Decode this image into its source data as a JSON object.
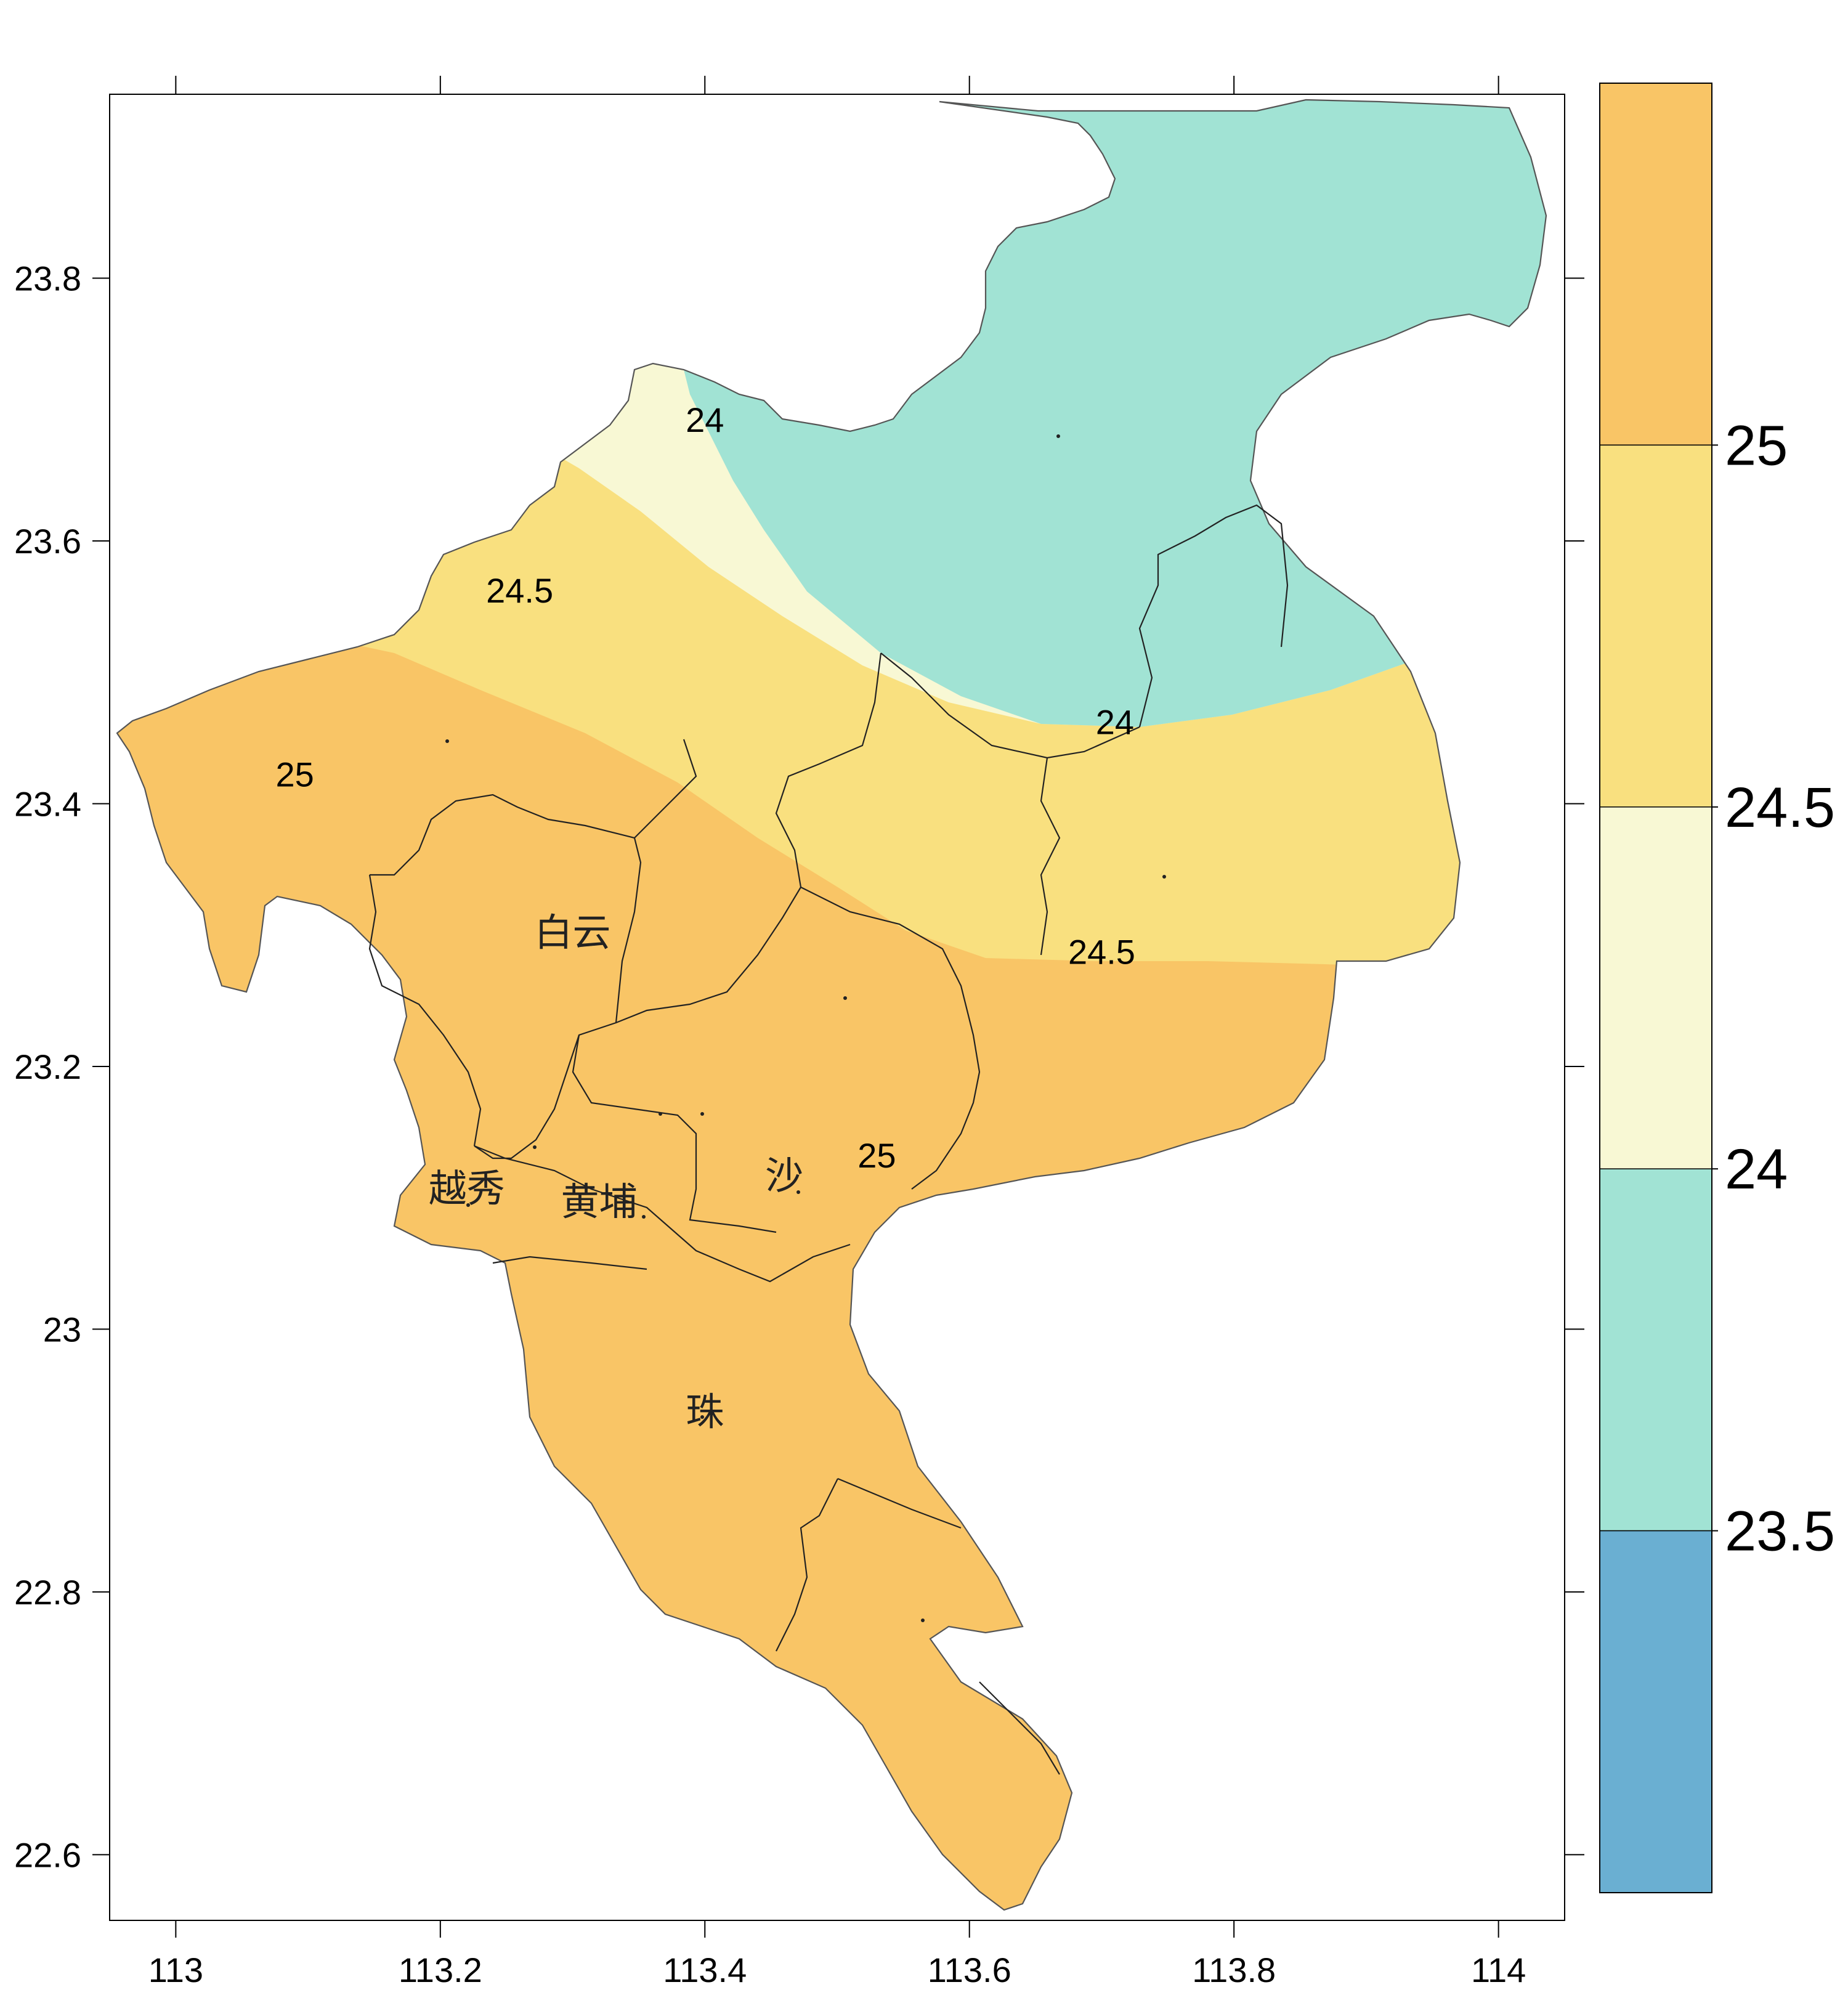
{
  "chart_data": {
    "type": "contour-map",
    "x_ticks": [
      "113",
      "113.2",
      "113.4",
      "113.6",
      "113.8",
      "114"
    ],
    "y_ticks": [
      "23.8",
      "23.6",
      "23.4",
      "23.2",
      "23",
      "22.8",
      "22.6"
    ],
    "xlim": [
      112.95,
      114.05
    ],
    "ylim": [
      22.55,
      23.94
    ],
    "color_levels": [
      {
        "range": [
          23.0,
          23.5
        ],
        "color": "#6aafd2"
      },
      {
        "range": [
          23.5,
          24.0
        ],
        "color": "#a1e3d4"
      },
      {
        "range": [
          24.0,
          24.5
        ],
        "color": "#f8f8d4"
      },
      {
        "range": [
          24.5,
          25.0
        ],
        "color": "#f9e07f"
      },
      {
        "range": [
          25.0,
          25.5
        ],
        "color": "#f9c566"
      }
    ],
    "legend_labels": [
      "25",
      "24.5",
      "24",
      "23.5"
    ],
    "contour_labels": [
      {
        "text": "24",
        "lon": 113.4,
        "lat": 23.69
      },
      {
        "text": "24.5",
        "lon": 113.26,
        "lat": 23.56
      },
      {
        "text": "25",
        "lon": 113.09,
        "lat": 23.42
      },
      {
        "text": "24",
        "lon": 113.71,
        "lat": 23.46
      },
      {
        "text": "24.5",
        "lon": 113.7,
        "lat": 23.285
      },
      {
        "text": "25",
        "lon": 113.53,
        "lat": 23.13
      }
    ],
    "place_labels": [
      {
        "text": "白云",
        "lon": 113.3,
        "lat": 23.3
      },
      {
        "text": "越秀",
        "lon": 113.22,
        "lat": 23.105
      },
      {
        "text": "黄埔",
        "lon": 113.32,
        "lat": 23.095
      },
      {
        "text": "沙",
        "lon": 113.46,
        "lat": 23.115
      },
      {
        "text": "珠",
        "lon": 113.4,
        "lat": 22.935
      }
    ]
  }
}
